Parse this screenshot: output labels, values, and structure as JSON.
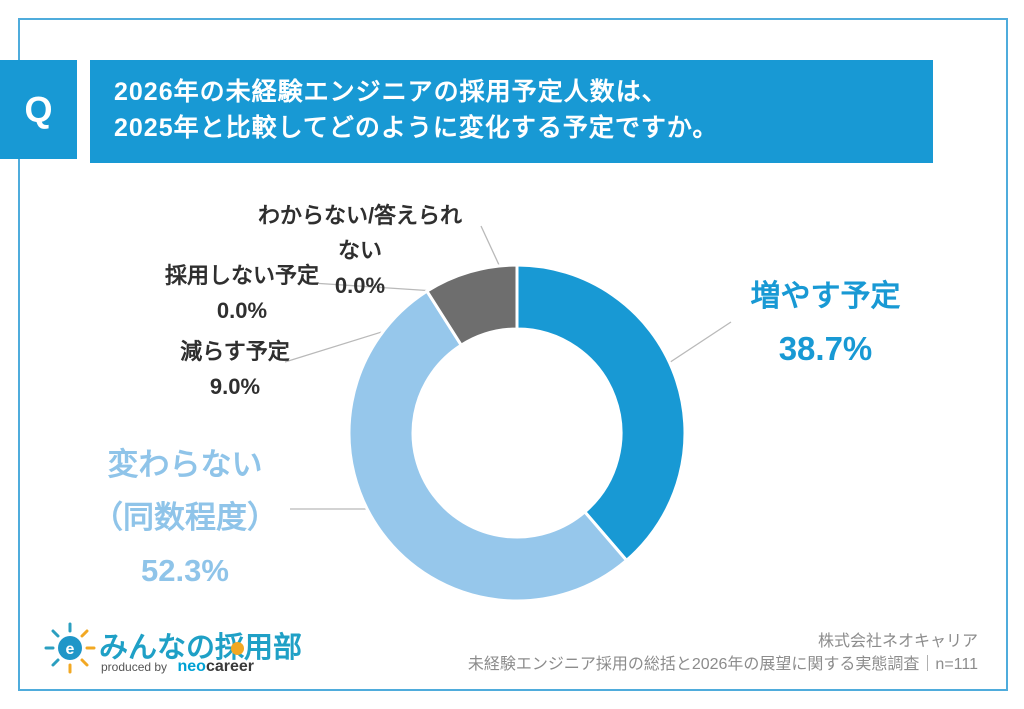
{
  "question": {
    "badge": "Q",
    "line1": "2026年の未経験エンジニアの採用予定人数は、",
    "line2": "2025年と比較してどのように変化する予定ですか。"
  },
  "chart_data": {
    "type": "pie",
    "donut": true,
    "title": "2026年の未経験エンジニアの採用予定人数は、2025年と比較してどのように変化する予定ですか。",
    "start_angle": "top-clockwise",
    "segments": [
      {
        "label": "増やす予定",
        "value": 38.7,
        "color": "#1899d4"
      },
      {
        "label": "変わらない（同数程度）",
        "value": 52.3,
        "color": "#96c7eb"
      },
      {
        "label": "減らす予定",
        "value": 9.0,
        "color": "#6e6e6e"
      },
      {
        "label": "採用しない予定",
        "value": 0.0,
        "color": "#bbbbbb"
      },
      {
        "label": "わからない/答えられない",
        "value": 0.0,
        "color": "#dddddd"
      }
    ],
    "legend_position": "callout-labels"
  },
  "callouts": {
    "unknown": {
      "name": "わからない/答えられない",
      "pct": "0.0%"
    },
    "none": {
      "name": "採用しない予定",
      "pct": "0.0%"
    },
    "decrease": {
      "name": "減らす予定",
      "pct": "9.0%"
    },
    "same_line1": "変わらない",
    "same_line2": "（同数程度）",
    "same_pct": "52.3%",
    "increase": {
      "name": "増やす予定",
      "pct": "38.7%"
    }
  },
  "footer": {
    "logo_text": "みんなの採用部",
    "produced_by": "produced by",
    "brand_neo": "neo",
    "brand_career": "career",
    "company": "株式会社ネオキャリア",
    "survey": "未経験エンジニア採用の総括と2026年の展望に関する実態調査｜n=111"
  },
  "colors": {
    "primary_blue": "#1899d4",
    "light_blue": "#96c7eb",
    "gray_segment": "#6e6e6e",
    "border_blue": "#4facdc",
    "same_label_blue": "#8fc4e9",
    "leader_line": "#b9b9b9",
    "footer_gray": "#8c8c8c",
    "logo_teal": "#1fa0c6",
    "logo_orange": "#f2a823"
  }
}
